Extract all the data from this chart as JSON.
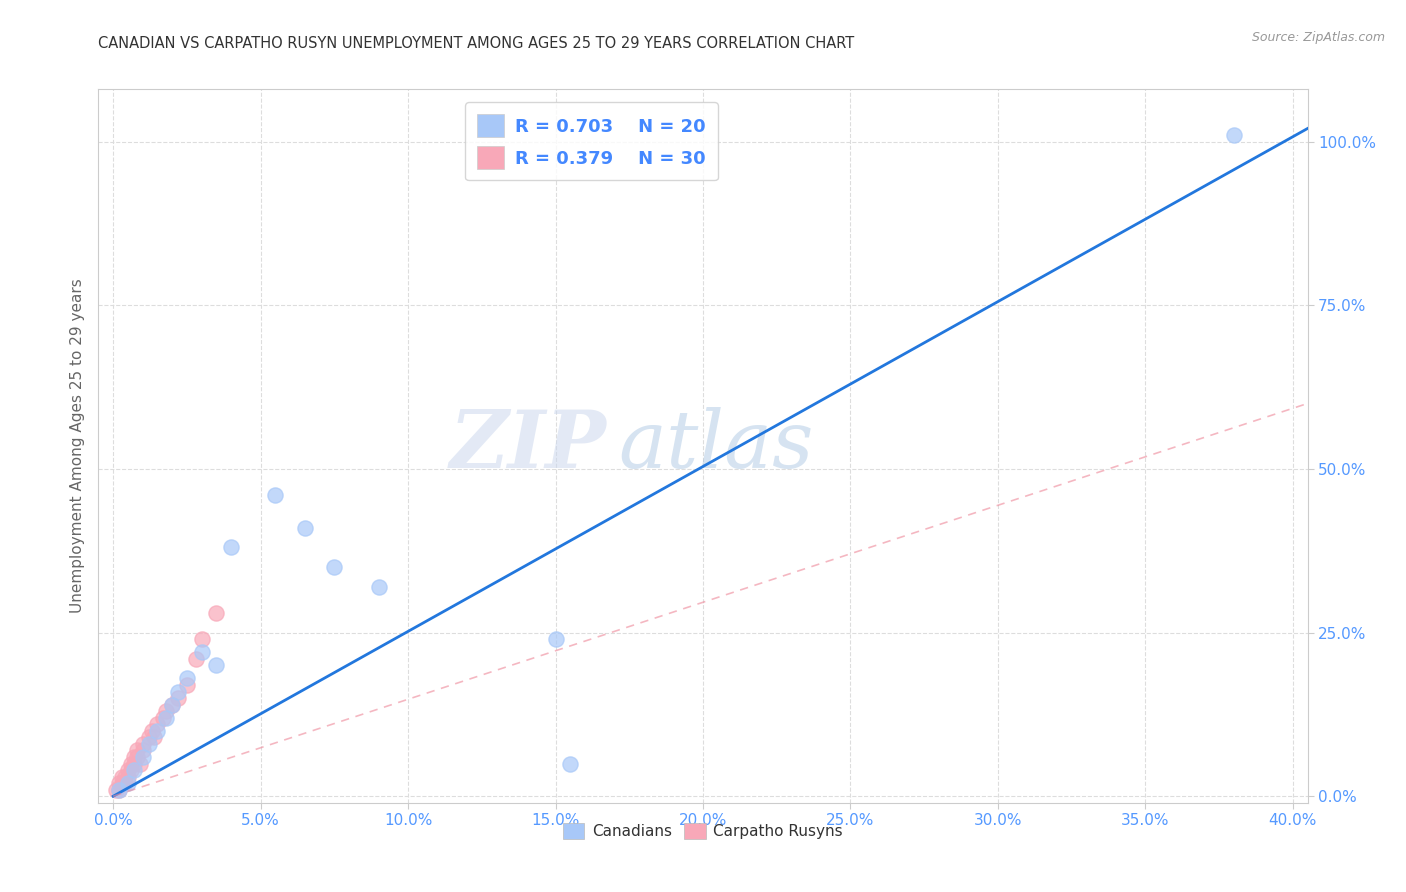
{
  "title": "CANADIAN VS CARPATHO RUSYN UNEMPLOYMENT AMONG AGES 25 TO 29 YEARS CORRELATION CHART",
  "source": "Source: ZipAtlas.com",
  "xlabel_ticks": [
    "0.0%",
    "5.0%",
    "10.0%",
    "15.0%",
    "20.0%",
    "25.0%",
    "30.0%",
    "35.0%",
    "40.0%"
  ],
  "ylabel_ticks": [
    "0.0%",
    "25.0%",
    "50.0%",
    "75.0%",
    "100.0%"
  ],
  "xlabel_vals": [
    0.0,
    0.05,
    0.1,
    0.15,
    0.2,
    0.25,
    0.3,
    0.35,
    0.4
  ],
  "ylabel_vals": [
    0.0,
    0.25,
    0.5,
    0.75,
    1.0
  ],
  "xlim": [
    -0.005,
    0.405
  ],
  "ylim": [
    -0.01,
    1.08
  ],
  "legend_R_canadians": "0.703",
  "legend_N_canadians": "20",
  "legend_R_carpatho": "0.379",
  "legend_N_carpatho": "30",
  "canadians_color": "#a8c8f8",
  "carpatho_color": "#f8a8b8",
  "canadian_line_color": "#2277dd",
  "carpatho_line_color": "#ee8899",
  "legend_text_color": "#4488ff",
  "title_color": "#333333",
  "axis_tick_color": "#5599ff",
  "grid_color": "#dddddd",
  "watermark_zip": "ZIP",
  "watermark_atlas": "atlas",
  "ylabel": "Unemployment Among Ages 25 to 29 years",
  "marker_size": 120,
  "canadians_x": [
    0.002,
    0.005,
    0.007,
    0.01,
    0.012,
    0.015,
    0.018,
    0.02,
    0.022,
    0.025,
    0.03,
    0.035,
    0.04,
    0.055,
    0.065,
    0.075,
    0.09,
    0.15,
    0.155,
    0.38
  ],
  "canadians_y": [
    0.01,
    0.02,
    0.04,
    0.06,
    0.08,
    0.1,
    0.12,
    0.14,
    0.16,
    0.18,
    0.22,
    0.2,
    0.38,
    0.46,
    0.41,
    0.35,
    0.32,
    0.24,
    0.05,
    1.01
  ],
  "carpatho_x": [
    0.001,
    0.002,
    0.002,
    0.003,
    0.003,
    0.004,
    0.004,
    0.005,
    0.005,
    0.006,
    0.006,
    0.007,
    0.007,
    0.008,
    0.008,
    0.009,
    0.01,
    0.01,
    0.012,
    0.013,
    0.014,
    0.015,
    0.017,
    0.018,
    0.02,
    0.022,
    0.025,
    0.028,
    0.03,
    0.035
  ],
  "carpatho_y": [
    0.01,
    0.01,
    0.02,
    0.02,
    0.03,
    0.02,
    0.03,
    0.03,
    0.04,
    0.04,
    0.05,
    0.05,
    0.06,
    0.06,
    0.07,
    0.05,
    0.07,
    0.08,
    0.09,
    0.1,
    0.09,
    0.11,
    0.12,
    0.13,
    0.14,
    0.15,
    0.17,
    0.21,
    0.24,
    0.28
  ],
  "canadian_line_x0": 0.0,
  "canadian_line_y0": 0.0,
  "canadian_line_x1": 0.405,
  "canadian_line_y1": 1.02,
  "carpatho_line_x0": 0.0,
  "carpatho_line_y0": 0.0,
  "carpatho_line_x1": 0.405,
  "carpatho_line_y1": 0.6
}
